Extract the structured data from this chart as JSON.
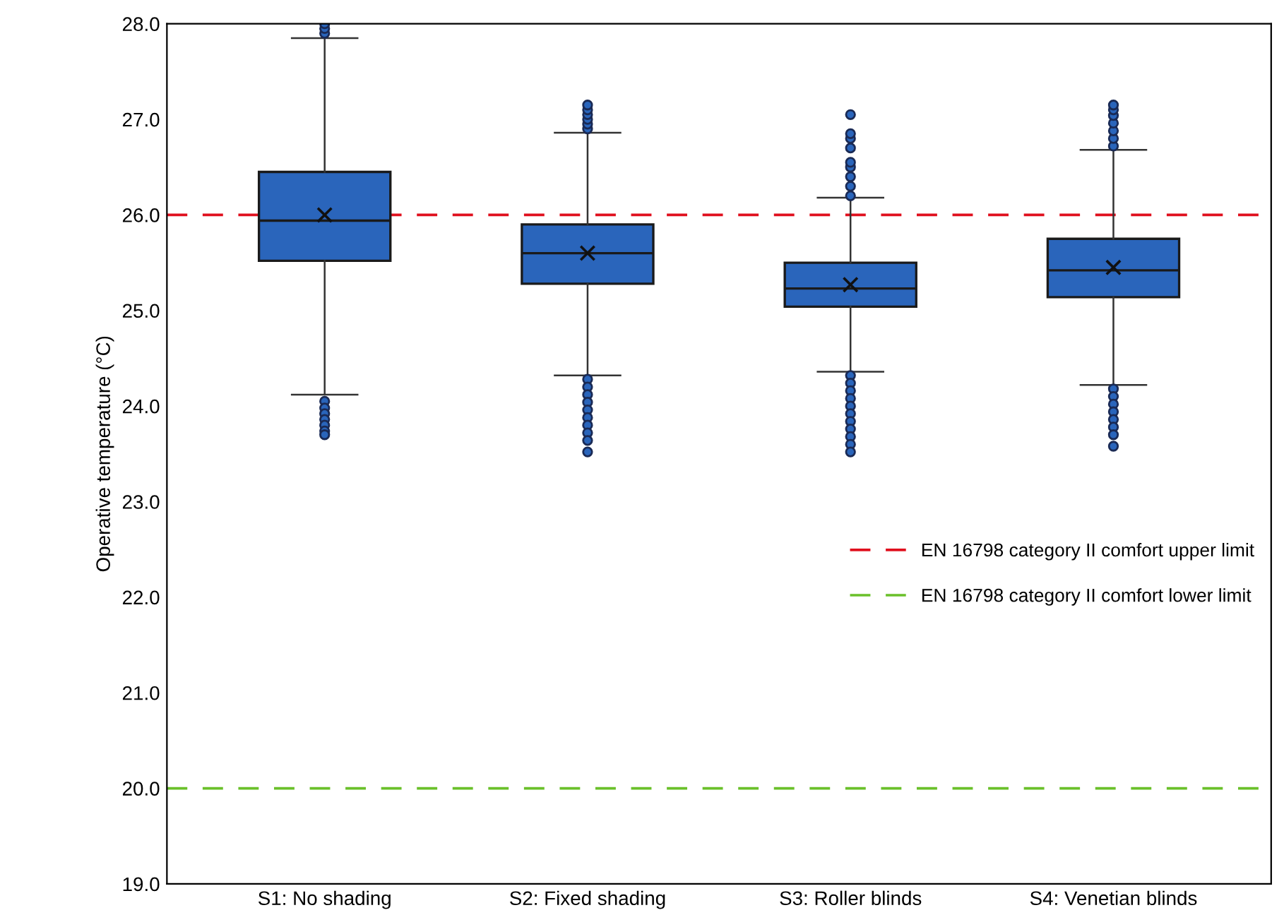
{
  "chart_data": {
    "type": "box",
    "ylabel": "Operative temperature (°C)",
    "categories": [
      "S1: No shading",
      "S2: Fixed shading",
      "S3: Roller blinds",
      "S4: Venetian blinds"
    ],
    "series": [
      {
        "color": "#2a65bb",
        "boxes": [
          {
            "low": 24.12,
            "q1": 25.52,
            "median": 25.94,
            "q3": 26.45,
            "high": 27.85,
            "mean": 26.0,
            "outliers": [
              27.9,
              27.95,
              28.0,
              24.05,
              23.98,
              23.92,
              23.86,
              23.8,
              23.74,
              23.7
            ]
          },
          {
            "low": 24.32,
            "q1": 25.28,
            "median": 25.6,
            "q3": 25.9,
            "high": 26.86,
            "mean": 25.6,
            "outliers": [
              26.9,
              26.95,
              27.0,
              27.05,
              27.1,
              27.15,
              24.28,
              24.2,
              24.12,
              24.04,
              23.96,
              23.88,
              23.8,
              23.72,
              23.64,
              23.52
            ]
          },
          {
            "low": 24.36,
            "q1": 25.04,
            "median": 25.23,
            "q3": 25.5,
            "high": 26.18,
            "mean": 25.27,
            "outliers": [
              26.2,
              26.3,
              26.4,
              26.5,
              26.55,
              26.7,
              26.8,
              26.85,
              27.05,
              24.32,
              24.24,
              24.16,
              24.08,
              24.0,
              23.92,
              23.84,
              23.76,
              23.68,
              23.6,
              23.52
            ]
          },
          {
            "low": 24.22,
            "q1": 25.14,
            "median": 25.42,
            "q3": 25.75,
            "high": 26.68,
            "mean": 25.45,
            "outliers": [
              26.72,
              26.8,
              26.88,
              26.96,
              27.04,
              27.1,
              27.15,
              24.18,
              24.1,
              24.02,
              23.94,
              23.86,
              23.78,
              23.7,
              23.58
            ]
          }
        ]
      }
    ],
    "ylim": [
      19.0,
      28.0
    ],
    "yticks": [
      {
        "value": 19,
        "label": "19.0"
      },
      {
        "value": 20,
        "label": "20.0"
      },
      {
        "value": 21,
        "label": "21.0"
      },
      {
        "value": 22,
        "label": "22.0"
      },
      {
        "value": 23,
        "label": "23.0"
      },
      {
        "value": 24,
        "label": "24.0"
      },
      {
        "value": 25,
        "label": "25.0"
      },
      {
        "value": 26,
        "label": "26.0"
      },
      {
        "value": 27,
        "label": "27.0"
      },
      {
        "value": 28,
        "label": "28.0"
      }
    ],
    "ref_lines": [
      {
        "axis": "y",
        "value": 26,
        "label": "EN 16798 category II comfort upper limit",
        "color": "#e0101e",
        "line_style": "dashed"
      },
      {
        "axis": "y",
        "value": 20,
        "label": "EN 16798 category II comfort lower limit",
        "color": "#6ac02a",
        "line_style": "dashed"
      }
    ],
    "legend": "right",
    "grid": false
  }
}
